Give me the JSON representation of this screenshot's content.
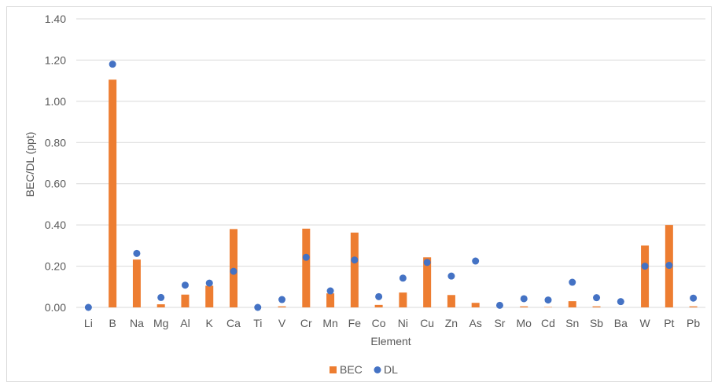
{
  "chart_data": {
    "type": "bar",
    "categories": [
      "Li",
      "B",
      "Na",
      "Mg",
      "Al",
      "K",
      "Ca",
      "Ti",
      "V",
      "Cr",
      "Mn",
      "Fe",
      "Co",
      "Ni",
      "Cu",
      "Zn",
      "As",
      "Sr",
      "Mo",
      "Cd",
      "Sn",
      "Sb",
      "Ba",
      "W",
      "Pt",
      "Pb"
    ],
    "series": [
      {
        "name": "BEC",
        "type": "bar",
        "values": [
          0.0,
          1.105,
          0.232,
          0.015,
          0.062,
          0.105,
          0.38,
          0.0,
          0.005,
          0.382,
          0.068,
          0.363,
          0.012,
          0.072,
          0.243,
          0.06,
          0.022,
          0.0,
          0.005,
          0.002,
          0.03,
          0.005,
          0.0,
          0.3,
          0.4,
          0.005
        ]
      },
      {
        "name": "DL",
        "type": "scatter",
        "values": [
          0.0,
          1.18,
          0.262,
          0.048,
          0.108,
          0.118,
          0.175,
          0.0,
          0.038,
          0.243,
          0.08,
          0.23,
          0.052,
          0.142,
          0.218,
          0.152,
          0.225,
          0.01,
          0.042,
          0.036,
          0.122,
          0.047,
          0.028,
          0.2,
          0.204,
          0.045
        ]
      }
    ],
    "xlabel": "Element",
    "ylabel": "BEC/DL (ppt)",
    "ylim": [
      0,
      1.4
    ],
    "yticks": [
      0,
      0.2,
      0.4,
      0.6,
      0.8,
      1.0,
      1.2,
      1.4
    ],
    "ytick_labels": [
      "0.00",
      "0.20",
      "0.40",
      "0.60",
      "0.80",
      "1.00",
      "1.20",
      "1.40"
    ],
    "grid": true,
    "legend_position": "bottom",
    "colors": {
      "BEC": "#ED7D31",
      "DL": "#4472C4",
      "grid": "#d9d9d9",
      "text": "#595959"
    }
  }
}
